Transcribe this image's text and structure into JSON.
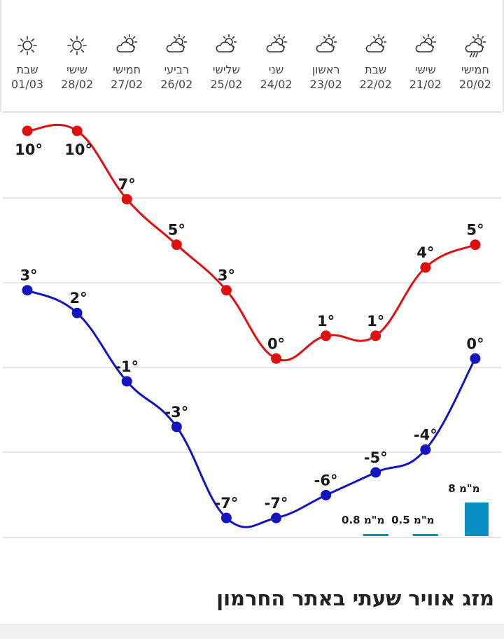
{
  "section_title": "מזג אוויר שעתי באתר החרמון",
  "chart_data": {
    "type": "line",
    "categories": [
      "01/03",
      "28/02",
      "27/02",
      "26/02",
      "25/02",
      "24/02",
      "23/02",
      "22/02",
      "21/02",
      "20/02"
    ],
    "days": [
      {
        "name": "שבת",
        "date": "01/03",
        "icon": "sun-icon"
      },
      {
        "name": "שישי",
        "date": "28/02",
        "icon": "sun-icon"
      },
      {
        "name": "חמישי",
        "date": "27/02",
        "icon": "partly-cloudy-icon"
      },
      {
        "name": "רביעי",
        "date": "26/02",
        "icon": "partly-cloudy-icon"
      },
      {
        "name": "שלישי",
        "date": "25/02",
        "icon": "partly-cloudy-icon"
      },
      {
        "name": "שני",
        "date": "24/02",
        "icon": "partly-cloudy-icon"
      },
      {
        "name": "ראשון",
        "date": "23/02",
        "icon": "partly-cloudy-icon"
      },
      {
        "name": "שבת",
        "date": "22/02",
        "icon": "partly-cloudy-icon"
      },
      {
        "name": "שישי",
        "date": "21/02",
        "icon": "partly-cloudy-icon"
      },
      {
        "name": "חמישי",
        "date": "20/02",
        "icon": "rain-cloud-icon"
      }
    ],
    "series": [
      {
        "key": "max",
        "color": "#e01010",
        "values": [
          10,
          10,
          7,
          5,
          3,
          0,
          1,
          1,
          4,
          5
        ],
        "labels": [
          "10°",
          "10°",
          "7°",
          "5°",
          "3°",
          "0°",
          "1°",
          "1°",
          "4°",
          "5°"
        ]
      },
      {
        "key": "min",
        "color": "#1515c0",
        "values": [
          3,
          2,
          -1,
          -3,
          -7,
          -7,
          -6,
          -5,
          -4,
          0
        ],
        "labels": [
          "3°",
          "2°",
          "-1°",
          "-3°",
          "-7°",
          "-7°",
          "-6°",
          "-5°",
          "-4°",
          "0°"
        ]
      }
    ],
    "precipitation": {
      "color": "#0b8ec4",
      "values": [
        0,
        0,
        0,
        0,
        0,
        0,
        0,
        0.8,
        0.5,
        8
      ],
      "labels": [
        "",
        "",
        "",
        "",
        "",
        "",
        "",
        "0.8 מ\"מ",
        "0.5 מ\"מ",
        "8 מ\"מ"
      ]
    },
    "ylim": [
      -7,
      10
    ],
    "grid": true
  }
}
